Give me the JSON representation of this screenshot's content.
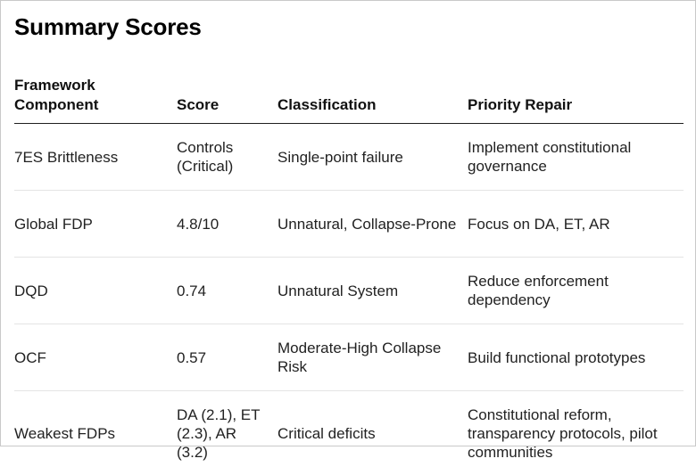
{
  "title": "Summary Scores",
  "table": {
    "headers": [
      "Framework Component",
      "Score",
      "Classification",
      "Priority Repair"
    ],
    "rows": [
      [
        "7ES Brittleness",
        "Controls (Critical)",
        "Single-point failure",
        "Implement constitutional governance"
      ],
      [
        "Global FDP",
        "4.8/10",
        "Unnatural, Collapse-Prone",
        "Focus on DA, ET, AR"
      ],
      [
        "DQD",
        "0.74",
        "Unnatural System",
        "Reduce enforcement dependency"
      ],
      [
        "OCF",
        "0.57",
        "Moderate-High Collapse Risk",
        "Build functional prototypes"
      ],
      [
        "Weakest FDPs",
        "DA (2.1), ET (2.3), AR (3.2)",
        "Critical deficits",
        "Constitutional reform, transparency protocols, pilot communities"
      ]
    ]
  }
}
